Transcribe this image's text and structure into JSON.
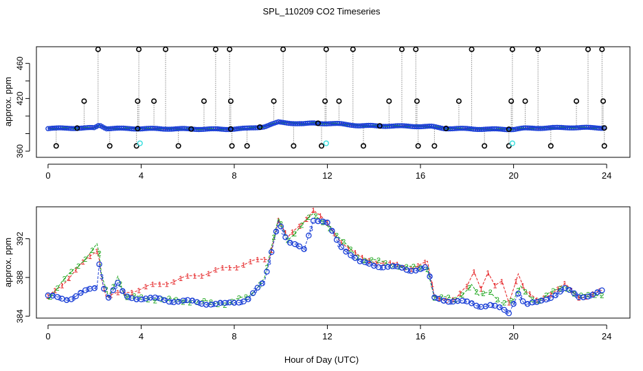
{
  "figure": {
    "title": "SPL_110209  CO2 Timeseries",
    "xlabel": "Hour of Day (UTC)"
  },
  "chart_data": [
    {
      "type": "scatter",
      "title": "SPL_110209  CO2 Timeseries",
      "xlabel": "",
      "ylabel": "approx. ppm",
      "xlim": [
        -0.5,
        25
      ],
      "ylim": [
        353,
        479
      ],
      "xticks": [
        0,
        4,
        8,
        12,
        16,
        20,
        24
      ],
      "yticks": [
        360,
        380,
        400,
        420,
        440,
        460
      ],
      "ytick_labels": [
        "360",
        "",
        "",
        "420",
        "",
        "460"
      ],
      "colors": {
        "red": "#e41a1c",
        "green": "#1aa51a",
        "blue": "#1a3fd6",
        "black": "#000000",
        "cyan": "#33dddd",
        "grey": "#888888"
      },
      "baseline_knots": [
        [
          0,
          386
        ],
        [
          2.0,
          386.5
        ],
        [
          2.2,
          390
        ],
        [
          2.5,
          386
        ],
        [
          7.6,
          385
        ],
        [
          8.6,
          386
        ],
        [
          9.3,
          388
        ],
        [
          9.9,
          393
        ],
        [
          11.0,
          391
        ],
        [
          11.4,
          392
        ],
        [
          12.6,
          391
        ],
        [
          13.4,
          389
        ],
        [
          15.5,
          388.5
        ],
        [
          16.5,
          388
        ],
        [
          17.0,
          386
        ],
        [
          19.0,
          385
        ],
        [
          20.0,
          385
        ],
        [
          20.4,
          386
        ],
        [
          22.5,
          387
        ],
        [
          23.8,
          386.5
        ]
      ],
      "spikes_high": [
        2.15,
        3.9,
        5.05,
        7.2,
        7.8,
        10.1,
        11.95,
        13.1,
        15.2,
        15.8,
        18.2,
        19.95,
        21.05,
        23.2,
        23.8
      ],
      "spikes_mid": [
        1.55,
        3.85,
        4.55,
        6.7,
        7.85,
        9.7,
        11.9,
        12.5,
        14.65,
        15.85,
        17.65,
        19.9,
        20.5,
        22.7,
        23.85
      ],
      "spikes_low": [
        0.35,
        2.65,
        3.8,
        5.6,
        7.9,
        8.55,
        10.55,
        11.75,
        13.55,
        15.9,
        16.6,
        18.75,
        19.8,
        21.6,
        23.9
      ],
      "markers_low": [
        1.25,
        3.85,
        6.15,
        7.85,
        9.1,
        11.6,
        14.25,
        17.1,
        19.8,
        23.9
      ],
      "cyan_points": [
        [
          3.95,
          369
        ],
        [
          11.95,
          369
        ],
        [
          19.95,
          369
        ]
      ],
      "spike_levels": {
        "high": 476,
        "mid": 417,
        "low": 366,
        "low_marker": 387
      }
    },
    {
      "type": "line",
      "title": "",
      "xlabel": "Hour of Day (UTC)",
      "ylabel": "approx. ppm",
      "xlim": [
        -0.5,
        25
      ],
      "ylim": [
        383.8,
        395.3
      ],
      "xticks": [
        0,
        4,
        8,
        12,
        16,
        20,
        24
      ],
      "yticks": [
        384,
        388,
        392
      ],
      "series": [
        {
          "name": "1",
          "color": "#e41a1c",
          "points": [
            [
              0,
              385.9
            ],
            [
              2.15,
              391
            ],
            [
              2.3,
              388
            ],
            [
              2.5,
              386
            ],
            [
              9.5,
              390
            ],
            [
              9.9,
              394
            ],
            [
              10.3,
              392
            ],
            [
              11.4,
              395
            ],
            [
              12.0,
              393.5
            ],
            [
              12.5,
              392
            ],
            [
              13.4,
              390
            ],
            [
              15.5,
              389
            ],
            [
              16.3,
              389.5
            ],
            [
              16.6,
              386
            ],
            [
              17.5,
              385.7
            ],
            [
              18.0,
              387
            ],
            [
              18.3,
              388.7
            ],
            [
              18.6,
              387
            ],
            [
              18.9,
              388.5
            ],
            [
              19.2,
              387
            ],
            [
              19.5,
              387.5
            ],
            [
              19.8,
              385.5
            ],
            [
              20.2,
              388.5
            ],
            [
              20.5,
              386.5
            ],
            [
              21.0,
              385.6
            ],
            [
              22.2,
              387.2
            ],
            [
              22.8,
              386
            ],
            [
              23.8,
              386.5
            ]
          ]
        },
        {
          "name": "2",
          "color": "#1aa51a",
          "points": [
            [
              0,
              385.9
            ],
            [
              2.15,
              391.5
            ],
            [
              2.3,
              388
            ],
            [
              2.6,
              386
            ],
            [
              3.0,
              388.3
            ],
            [
              3.3,
              386
            ],
            [
              7.6,
              385.3
            ],
            [
              8.6,
              386
            ],
            [
              9.3,
              388
            ],
            [
              9.9,
              394
            ],
            [
              10.3,
              392
            ],
            [
              11.4,
              394.5
            ],
            [
              12.0,
              393.5
            ],
            [
              12.5,
              392
            ],
            [
              13.4,
              390
            ],
            [
              15.5,
              389
            ],
            [
              16.3,
              389
            ],
            [
              16.6,
              386
            ],
            [
              17.5,
              385.7
            ],
            [
              18.2,
              387.3
            ],
            [
              18.5,
              386
            ],
            [
              19.0,
              386.5
            ],
            [
              19.5,
              385.5
            ],
            [
              20.0,
              385.5
            ],
            [
              20.3,
              387
            ],
            [
              21.0,
              385.5
            ],
            [
              22.2,
              387.2
            ],
            [
              22.8,
              386
            ],
            [
              23.8,
              386.3
            ]
          ]
        },
        {
          "name": "3",
          "color": "#1a3fd6",
          "points": [
            [
              0,
              386
            ],
            [
              0.9,
              385.8
            ],
            [
              2.1,
              387
            ],
            [
              2.2,
              389.5
            ],
            [
              2.4,
              387
            ],
            [
              2.6,
              386
            ],
            [
              3.0,
              387.3
            ],
            [
              3.3,
              386
            ],
            [
              7.6,
              385.2
            ],
            [
              8.6,
              385.8
            ],
            [
              9.3,
              387.5
            ],
            [
              9.9,
              394
            ],
            [
              10.3,
              391.5
            ],
            [
              11.0,
              391
            ],
            [
              11.4,
              394
            ],
            [
              12.0,
              393.5
            ],
            [
              12.5,
              391.5
            ],
            [
              13.4,
              389.5
            ],
            [
              15.5,
              388.8
            ],
            [
              16.3,
              389
            ],
            [
              16.6,
              385.8
            ],
            [
              17.5,
              385.6
            ],
            [
              18.5,
              385.1
            ],
            [
              19.0,
              385.2
            ],
            [
              19.8,
              384.3
            ],
            [
              20.2,
              386.5
            ],
            [
              20.5,
              385.2
            ],
            [
              21.0,
              385.3
            ],
            [
              22.2,
              386.8
            ],
            [
              22.8,
              386
            ],
            [
              23.8,
              386.5
            ]
          ]
        }
      ]
    }
  ]
}
